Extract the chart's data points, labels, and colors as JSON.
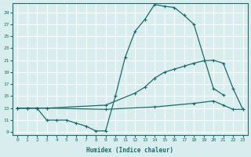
{
  "xlabel": "Humidex (Indice chaleur)",
  "bg_color": "#d8eeee",
  "grid_color": "#ffffff",
  "line_color": "#1a6b6b",
  "xlim": [
    -0.5,
    23.5
  ],
  "ylim": [
    8.5,
    30.5
  ],
  "yticks": [
    9,
    11,
    13,
    15,
    17,
    19,
    21,
    23,
    25,
    27,
    29
  ],
  "xticks": [
    0,
    1,
    2,
    3,
    4,
    5,
    6,
    7,
    8,
    9,
    10,
    11,
    12,
    13,
    14,
    15,
    16,
    17,
    18,
    19,
    20,
    21,
    22,
    23
  ],
  "curve1_x": [
    0,
    1,
    2,
    3,
    4,
    5,
    6,
    7,
    8,
    9,
    10,
    11,
    12,
    13,
    14,
    15,
    16,
    17,
    18,
    20,
    21
  ],
  "curve1_y": [
    13,
    13,
    13,
    11,
    11,
    11,
    10.5,
    10,
    9.2,
    9.2,
    15,
    21.5,
    25.8,
    27.8,
    30.3,
    30.0,
    29.8,
    28.5,
    27.0,
    16.3,
    15.2
  ],
  "curve2_x": [
    0,
    1,
    2,
    3,
    9,
    12,
    13,
    14,
    15,
    16,
    17,
    18,
    19,
    20,
    21,
    22,
    23
  ],
  "curve2_y": [
    13,
    13,
    13,
    13,
    13.5,
    15.5,
    16.5,
    18,
    19,
    19.5,
    20,
    20.5,
    20.9,
    21.0,
    20.5,
    16.3,
    12.8
  ],
  "curve3_x": [
    0,
    1,
    2,
    3,
    9,
    14,
    18,
    20,
    21,
    22,
    23
  ],
  "curve3_y": [
    13,
    13,
    13,
    13,
    12.8,
    13.2,
    13.8,
    14.2,
    13.5,
    12.8,
    12.8
  ]
}
